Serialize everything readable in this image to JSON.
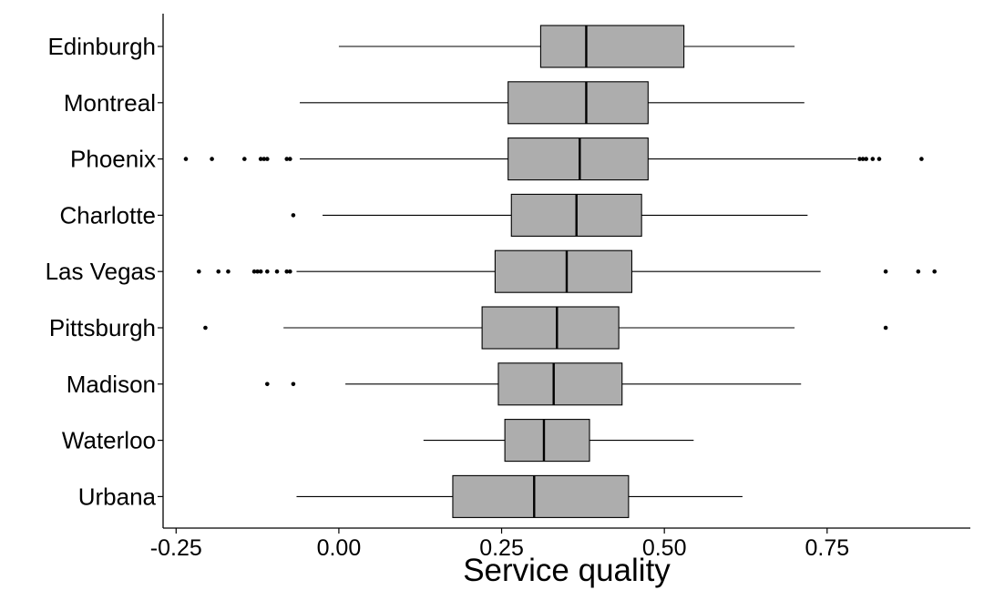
{
  "chart_data": {
    "type": "boxplot",
    "orientation": "horizontal",
    "xlabel": "Service quality",
    "ylabel": "",
    "xlim": [
      -0.27,
      0.97
    ],
    "xticks": [
      {
        "value": -0.25,
        "label": "-0.25"
      },
      {
        "value": 0.0,
        "label": "0.00"
      },
      {
        "value": 0.25,
        "label": "0.25"
      },
      {
        "value": 0.5,
        "label": "0.50"
      },
      {
        "value": 0.75,
        "label": "0.75"
      }
    ],
    "grid": false,
    "legend": "none",
    "box_color": "#adadad",
    "line_color": "#000000",
    "categories": [
      "Edinburgh",
      "Montreal",
      "Phoenix",
      "Charlotte",
      "Las Vegas",
      "Pittsburgh",
      "Madison",
      "Waterloo",
      "Urbana"
    ],
    "boxes": [
      {
        "category": "Edinburgh",
        "whisker_low": 0.0,
        "q1": 0.31,
        "median": 0.38,
        "q3": 0.53,
        "whisker_high": 0.7,
        "outliers": []
      },
      {
        "category": "Montreal",
        "whisker_low": -0.06,
        "q1": 0.26,
        "median": 0.38,
        "q3": 0.475,
        "whisker_high": 0.715,
        "outliers": []
      },
      {
        "category": "Phoenix",
        "whisker_low": -0.06,
        "q1": 0.26,
        "median": 0.37,
        "q3": 0.475,
        "whisker_high": 0.795,
        "outliers": [
          -0.235,
          -0.195,
          -0.145,
          -0.12,
          -0.115,
          -0.11,
          -0.08,
          -0.075,
          0.8,
          0.805,
          0.81,
          0.82,
          0.83,
          0.895
        ]
      },
      {
        "category": "Charlotte",
        "whisker_low": -0.025,
        "q1": 0.265,
        "median": 0.365,
        "q3": 0.465,
        "whisker_high": 0.72,
        "outliers": [
          -0.07
        ]
      },
      {
        "category": "Las Vegas",
        "whisker_low": -0.065,
        "q1": 0.24,
        "median": 0.35,
        "q3": 0.45,
        "whisker_high": 0.74,
        "outliers": [
          -0.215,
          -0.185,
          -0.17,
          -0.13,
          -0.125,
          -0.12,
          -0.11,
          -0.095,
          -0.08,
          -0.075,
          0.84,
          0.89,
          0.915
        ]
      },
      {
        "category": "Pittsburgh",
        "whisker_low": -0.085,
        "q1": 0.22,
        "median": 0.335,
        "q3": 0.43,
        "whisker_high": 0.7,
        "outliers": [
          -0.205,
          0.84
        ]
      },
      {
        "category": "Madison",
        "whisker_low": 0.01,
        "q1": 0.245,
        "median": 0.33,
        "q3": 0.435,
        "whisker_high": 0.71,
        "outliers": [
          -0.11,
          -0.07
        ]
      },
      {
        "category": "Waterloo",
        "whisker_low": 0.13,
        "q1": 0.255,
        "median": 0.315,
        "q3": 0.385,
        "whisker_high": 0.545,
        "outliers": []
      },
      {
        "category": "Urbana",
        "whisker_low": -0.065,
        "q1": 0.175,
        "median": 0.3,
        "q3": 0.445,
        "whisker_high": 0.62,
        "outliers": []
      }
    ]
  }
}
